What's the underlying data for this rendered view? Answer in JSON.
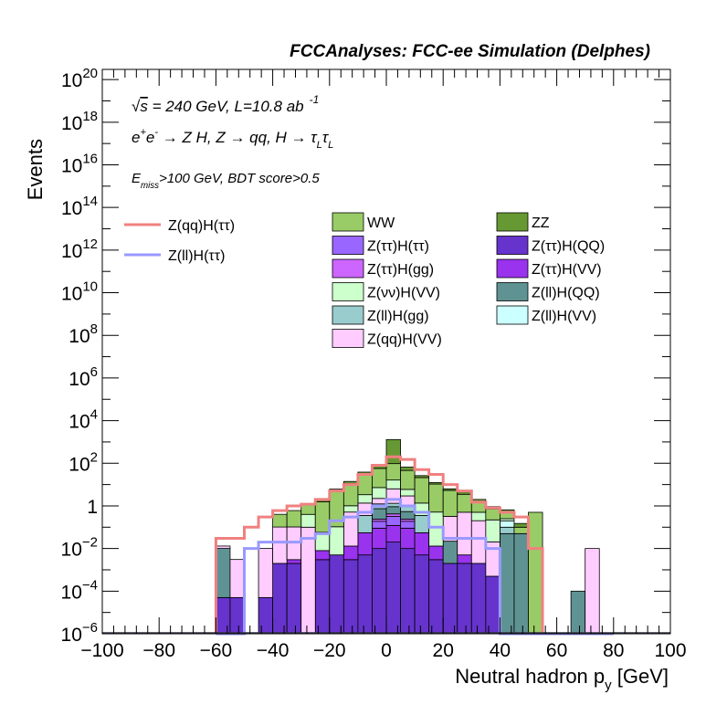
{
  "chart_data": {
    "type": "bar",
    "title": "FCCAnalyses: FCC-ee Simulation (Delphes)",
    "xlabel": "Neutral hadron p",
    "xlabel_sub": "y",
    "xlabel_unit": " [GeV]",
    "ylabel": "Events",
    "xlim": [
      -100,
      100
    ],
    "ylim": [
      1e-06,
      3e+20
    ],
    "log_y": true,
    "grid": false,
    "x_ticks": [
      -100,
      -80,
      -60,
      -40,
      -20,
      0,
      20,
      40,
      60,
      80,
      100
    ],
    "x_tick_labels": [
      "−100",
      "−80",
      "−60",
      "−40",
      "−20",
      "0",
      "20",
      "40",
      "60",
      "80",
      "100"
    ],
    "y_ticks": [
      {
        "base": "10",
        "exp": "−6",
        "value_exp": -6
      },
      {
        "base": "10",
        "exp": "−4",
        "value_exp": -4
      },
      {
        "base": "10",
        "exp": "−2",
        "value_exp": -2
      },
      {
        "base": "1",
        "exp": "",
        "value_exp": 0
      },
      {
        "base": "10",
        "exp": "2",
        "value_exp": 2
      },
      {
        "base": "10",
        "exp": "4",
        "value_exp": 4
      },
      {
        "base": "10",
        "exp": "6",
        "value_exp": 6
      },
      {
        "base": "10",
        "exp": "8",
        "value_exp": 8
      },
      {
        "base": "10",
        "exp": "10",
        "value_exp": 10
      },
      {
        "base": "10",
        "exp": "12",
        "value_exp": 12
      },
      {
        "base": "10",
        "exp": "14",
        "value_exp": 14
      },
      {
        "base": "10",
        "exp": "16",
        "value_exp": 16
      },
      {
        "base": "10",
        "exp": "18",
        "value_exp": 18
      },
      {
        "base": "10",
        "exp": "20",
        "value_exp": 20
      }
    ],
    "annotations": {
      "line1_pre": "√",
      "line1_s": "s",
      "line1_rest": " = 240 GeV, L=10.8 ab",
      "line1_sup": "-1",
      "line2": [
        {
          "t": "e"
        },
        {
          "t": "+",
          "sup": true
        },
        {
          "t": "e"
        },
        {
          "t": "-",
          "sup": true
        },
        {
          "t": " → Z H, Z  → qq, H  → τ"
        },
        {
          "t": "L",
          "sub": true
        },
        {
          "t": "τ"
        },
        {
          "t": "L",
          "sub": true
        }
      ],
      "line3": [
        {
          "t": "E"
        },
        {
          "t": "miss",
          "sub": true
        },
        {
          "t": ">100 GeV, BDT score>0.5"
        }
      ]
    },
    "bin_edges": [
      -60,
      -55,
      -50,
      -45,
      -40,
      -35,
      -30,
      -25,
      -20,
      -15,
      -10,
      -5,
      0,
      5,
      10,
      15,
      20,
      25,
      30,
      35,
      40,
      45,
      50,
      55,
      60,
      65,
      70,
      75,
      80
    ],
    "stack_order": [
      "Z(ττ)H(QQ)",
      "Z(ττ)H(VV)",
      "Z(ττ)H(ττ)",
      "Z(ττ)H(gg)",
      "Z(ll)H(QQ)",
      "Z(ll)H(gg)",
      "Z(ll)H(VV)",
      "Z(qq)H(VV)",
      "Z(νν)H(VV)",
      "WW",
      "ZZ"
    ],
    "series": [
      {
        "name": "Z(ττ)H(QQ)",
        "color": "#6633cc",
        "values": [
          5e-05,
          5e-05,
          0,
          5e-05,
          0.002,
          0.002,
          0,
          0.003,
          0.005,
          0.003,
          0.005,
          0.01,
          0.02,
          0.01,
          0.005,
          0.003,
          0.002,
          0.002,
          0.002,
          0.0005,
          0,
          0,
          0,
          0,
          0,
          0,
          0,
          0
        ]
      },
      {
        "name": "Z(ττ)H(VV)",
        "color": "#9933ee",
        "values": [
          0,
          0,
          0,
          0,
          0,
          0.001,
          0,
          0.005,
          0,
          0.01,
          0.05,
          0.08,
          0.1,
          0.08,
          0.05,
          0.01,
          0,
          0.003,
          0,
          0,
          0,
          0,
          0,
          0,
          0,
          0,
          0,
          0
        ]
      },
      {
        "name": "Z(ττ)H(ττ)",
        "color": "#9966ff",
        "values": [
          0,
          0,
          0,
          0,
          0,
          0,
          0,
          0,
          0,
          0,
          0,
          0.1,
          0.2,
          0.1,
          0,
          0,
          0,
          0,
          0,
          0,
          0,
          0,
          0,
          0,
          0,
          0,
          0,
          0
        ]
      },
      {
        "name": "Z(ττ)H(gg)",
        "color": "#cc66ff",
        "values": [
          0,
          0,
          0,
          0,
          0,
          0,
          0,
          0,
          0,
          0,
          0,
          0.05,
          0.1,
          0.05,
          0,
          0,
          0,
          0,
          0,
          0,
          0,
          0,
          0,
          0,
          0,
          0,
          0,
          0
        ]
      },
      {
        "name": "Z(ll)H(QQ)",
        "color": "#5f9393",
        "values": [
          0.01,
          0,
          0,
          0,
          0,
          0,
          0,
          0,
          0,
          0,
          0,
          0.5,
          0.5,
          0.3,
          0,
          0,
          0.02,
          0,
          0,
          0,
          0.05,
          0.05,
          0,
          0,
          0,
          0.0001,
          0,
          0
        ]
      },
      {
        "name": "Z(ll)H(gg)",
        "color": "#99cccc",
        "values": [
          0,
          0,
          0,
          0,
          0,
          0,
          0,
          0,
          0,
          0,
          0.3,
          0.5,
          0.4,
          0.4,
          0.3,
          0,
          0,
          0,
          0,
          0,
          0.05,
          0,
          0,
          0,
          0,
          0,
          0,
          0
        ]
      },
      {
        "name": "Z(ll)H(VV)",
        "color": "#ccffff",
        "values": [
          0,
          0,
          0,
          0,
          0,
          0,
          0,
          0,
          0,
          0,
          0,
          0,
          0,
          0,
          0,
          0,
          0,
          0,
          0,
          0,
          0.1,
          0,
          0,
          0,
          0,
          0,
          0,
          0
        ]
      },
      {
        "name": "Z(qq)H(VV)",
        "color": "#ffccff",
        "values": [
          0.003,
          0.003,
          0,
          0.01,
          0.1,
          0.1,
          0.1,
          0,
          0,
          0.5,
          1,
          1,
          5,
          2,
          0,
          0,
          0.3,
          0.5,
          0.2,
          0.02,
          0,
          0,
          0,
          0,
          0,
          0,
          0.01,
          0
        ]
      },
      {
        "name": "Z(νν)H(VV)",
        "color": "#ccffcc",
        "values": [
          0,
          0,
          0,
          0,
          0,
          0,
          0.3,
          0.05,
          0.1,
          0.5,
          2,
          5,
          10,
          3,
          1,
          0.5,
          0,
          0,
          0.3,
          0.2,
          0.05,
          0,
          0,
          0,
          0,
          0,
          0,
          0
        ]
      },
      {
        "name": "WW",
        "color": "#99cc66",
        "values": [
          0,
          0,
          0,
          0,
          0.3,
          0.5,
          0.7,
          1.5,
          5,
          10,
          30,
          50,
          80,
          40,
          20,
          10,
          5,
          3,
          1,
          0.5,
          0.3,
          0.05,
          0.5,
          0,
          0,
          0,
          0,
          0
        ]
      },
      {
        "name": "ZZ",
        "color": "#669933",
        "values": [
          0,
          0,
          0,
          0,
          0,
          0,
          0,
          0.5,
          1,
          3,
          5,
          15,
          1200,
          20,
          5,
          2,
          1,
          1,
          0.5,
          0.2,
          0.1,
          0.05,
          0,
          0,
          0,
          0,
          0,
          0
        ]
      }
    ],
    "lines": [
      {
        "name": "Z(qq)H(ττ)",
        "color": "#f08080",
        "values": [
          0.03,
          0.03,
          0.1,
          0.3,
          0.6,
          1,
          1.2,
          2,
          5,
          10,
          30,
          80,
          200,
          150,
          50,
          30,
          10,
          5,
          1.5,
          0.8,
          0.5,
          0.3,
          0.01,
          0,
          0,
          0,
          0,
          0
        ]
      },
      {
        "name": "Z(ll)H(ττ)",
        "color": "#9999ff",
        "values": [
          0,
          0,
          0.01,
          0.02,
          0.02,
          0.02,
          0.03,
          0.05,
          0.2,
          0.3,
          0.5,
          1,
          2,
          1,
          0.5,
          0.1,
          0.03,
          0.03,
          0.03,
          0.01,
          0,
          0,
          0,
          0,
          0,
          0,
          0,
          0
        ]
      }
    ],
    "legend_placement": "upper-center",
    "legend_lines": [
      "Z(qq)H(ττ)",
      "Z(ll)H(ττ)"
    ],
    "legend_fills": [
      {
        "name": "WW",
        "color": "#99cc66"
      },
      {
        "name": "ZZ",
        "color": "#669933"
      },
      {
        "name": "Z(ττ)H(ττ)",
        "color": "#9966ff"
      },
      {
        "name": "Z(ττ)H(QQ)",
        "color": "#6633cc"
      },
      {
        "name": "Z(ττ)H(gg)",
        "color": "#cc66ff"
      },
      {
        "name": "Z(ττ)H(VV)",
        "color": "#9933ee"
      },
      {
        "name": "Z(νν)H(VV)",
        "color": "#ccffcc"
      },
      {
        "name": "Z(ll)H(QQ)",
        "color": "#5f9393"
      },
      {
        "name": "Z(ll)H(gg)",
        "color": "#99cccc"
      },
      {
        "name": "Z(ll)H(VV)",
        "color": "#ccffff"
      },
      {
        "name": "Z(qq)H(VV)",
        "color": "#ffccff"
      }
    ]
  }
}
